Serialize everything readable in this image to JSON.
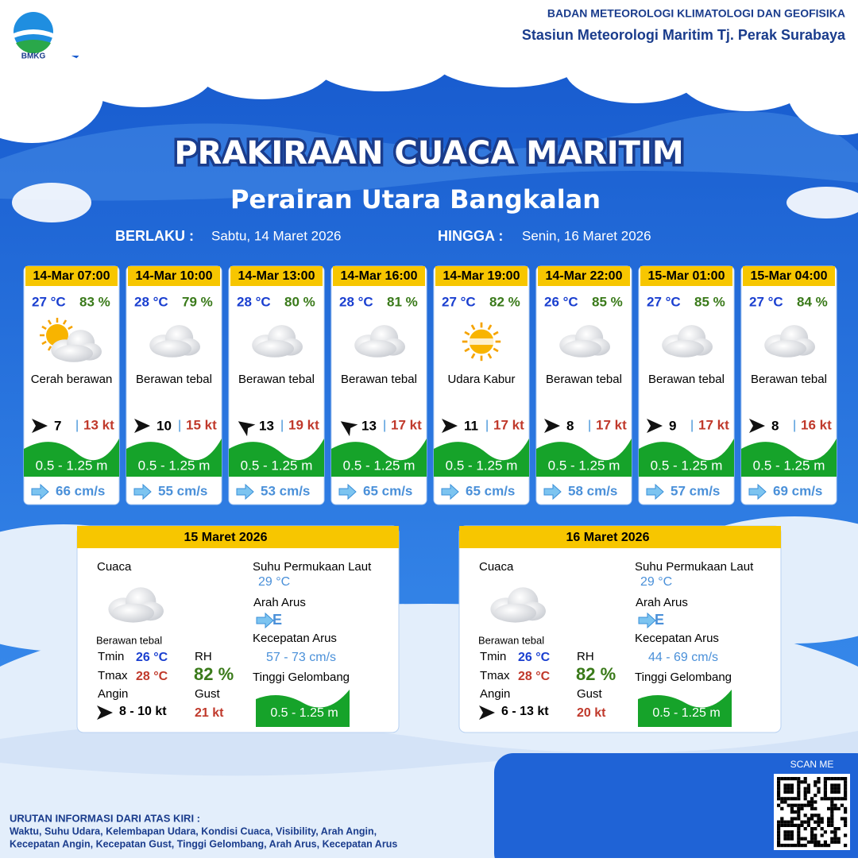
{
  "header": {
    "logo_text": "BMKG",
    "agency": "BADAN METEOROLOGI KLIMATOLOGI DAN GEOFISIKA",
    "station": "Stasiun Meteorologi Maritim Tj. Perak Surabaya"
  },
  "title": "PRAKIRAAN CUACA MARITIM",
  "subtitle": "Perairan Utara Bangkalan",
  "validity": {
    "from_label": "BERLAKU :",
    "from": "Sabtu, 14 Maret 2026",
    "to_label": "HINGGA :",
    "to": "Senin, 16 Maret 2026"
  },
  "forecasts": [
    {
      "time": "14-Mar 07:00",
      "temp": "27 °C",
      "rh": "83 %",
      "weather": "Cerah berawan",
      "wind": "7",
      "gust": "13 kt",
      "wave": "0.5 - 1.25 m",
      "current": "66 cm/s"
    },
    {
      "time": "14-Mar 10:00",
      "temp": "28 °C",
      "rh": "79 %",
      "weather": "Berawan tebal",
      "wind": "10",
      "gust": "15 kt",
      "wave": "0.5 - 1.25 m",
      "current": "55 cm/s"
    },
    {
      "time": "14-Mar 13:00",
      "temp": "28 °C",
      "rh": "80 %",
      "weather": "Berawan tebal",
      "wind": "13",
      "gust": "19 kt",
      "wave": "0.5 - 1.25 m",
      "current": "53 cm/s"
    },
    {
      "time": "14-Mar 16:00",
      "temp": "28 °C",
      "rh": "81 %",
      "weather": "Berawan tebal",
      "wind": "13",
      "gust": "17 kt",
      "wave": "0.5 - 1.25 m",
      "current": "65 cm/s"
    },
    {
      "time": "14-Mar 19:00",
      "temp": "27 °C",
      "rh": "82 %",
      "weather": "Udara Kabur",
      "wind": "11",
      "gust": "17 kt",
      "wave": "0.5 - 1.25 m",
      "current": "65 cm/s"
    },
    {
      "time": "14-Mar 22:00",
      "temp": "26 °C",
      "rh": "85 %",
      "weather": "Berawan tebal",
      "wind": "8",
      "gust": "17 kt",
      "wave": "0.5 - 1.25 m",
      "current": "58 cm/s"
    },
    {
      "time": "15-Mar 01:00",
      "temp": "27 °C",
      "rh": "85 %",
      "weather": "Berawan tebal",
      "wind": "9",
      "gust": "17 kt",
      "wave": "0.5 - 1.25 m",
      "current": "57 cm/s"
    },
    {
      "time": "15-Mar 04:00",
      "temp": "27 °C",
      "rh": "84 %",
      "weather": "Berawan tebal",
      "wind": "8",
      "gust": "16 kt",
      "wave": "0.5 - 1.25 m",
      "current": "69 cm/s"
    }
  ],
  "summary_labels": {
    "weather": "Cuaca",
    "tmin": "Tmin",
    "tmax": "Tmax",
    "wind": "Angin",
    "rh": "RH",
    "gust": "Gust",
    "sst": "Suhu Permukaan Laut",
    "current_dir": "Arah Arus",
    "current_speed": "Kecepatan Arus",
    "wave": "Tinggi Gelombang"
  },
  "summaries": [
    {
      "date": "15 Maret 2026",
      "weather": "Berawan tebal",
      "tmin": "26 °C",
      "tmax": "28 °C",
      "wind": "8 - 10 kt",
      "rh": "82 %",
      "gust": "21 kt",
      "sst": "29 °C",
      "current_dir": "E",
      "current_speed": "57 - 73 cm/s",
      "wave": "0.5 - 1.25 m"
    },
    {
      "date": "16 Maret 2026",
      "weather": "Berawan tebal",
      "tmin": "26 °C",
      "tmax": "28 °C",
      "wind": "6 - 13 kt",
      "rh": "82 %",
      "gust": "20 kt",
      "sst": "29 °C",
      "current_dir": "E",
      "current_speed": "44 - 69 cm/s",
      "wave": "0.5 - 1.25 m"
    }
  ],
  "footer": {
    "title": "URUTAN INFORMASI DARI ATAS KIRI :",
    "line1": "Waktu, Suhu Udara, Kelembapan Udara, Kondisi Cuaca, Visibility, Arah Angin,",
    "line2": "Kecepatan Angin, Kecepatan Gust, Tinggi Gelombang, Arah Arus, Kecepatan Arus",
    "scan": "SCAN ME"
  }
}
